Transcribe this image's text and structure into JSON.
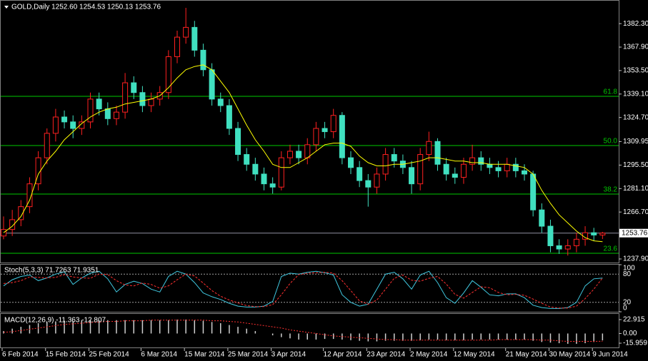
{
  "chart_data": {
    "type": "candlestick",
    "title": "GOLD,Daily  1252.60 1254.53 1250.13 1253.76",
    "categories": [
      "6 Feb 2014",
      null,
      null,
      null,
      null,
      "15 Feb 2014",
      null,
      null,
      null,
      null,
      "25 Feb 2014",
      null,
      null,
      null,
      null,
      null,
      "6 Mar 2014",
      null,
      null,
      null,
      null,
      "15 Mar 2014",
      null,
      null,
      null,
      null,
      "25 Mar 2014",
      null,
      null,
      null,
      null,
      "3 Apr 2014",
      null,
      null,
      null,
      null,
      null,
      "12 Apr 2014",
      null,
      null,
      null,
      null,
      "23 Apr 2014",
      null,
      null,
      null,
      null,
      "2 May 2014",
      null,
      null,
      null,
      null,
      "12 May 2014",
      null,
      null,
      null,
      null,
      null,
      "21 May 2014",
      null,
      null,
      null,
      null,
      "30 May 2014",
      null,
      null,
      null,
      null,
      "9 Jun 2014",
      null
    ],
    "candles": [
      [
        1252,
        1264,
        1250,
        1256
      ],
      [
        1256,
        1268,
        1252,
        1262
      ],
      [
        1262,
        1274,
        1258,
        1270
      ],
      [
        1270,
        1288,
        1266,
        1284
      ],
      [
        1284,
        1304,
        1280,
        1300
      ],
      [
        1300,
        1318,
        1296,
        1315
      ],
      [
        1315,
        1330,
        1310,
        1325
      ],
      [
        1325,
        1329,
        1318,
        1322
      ],
      [
        1322,
        1326,
        1312,
        1318
      ],
      [
        1318,
        1326,
        1314,
        1322
      ],
      [
        1322,
        1340,
        1318,
        1336
      ],
      [
        1336,
        1340,
        1326,
        1330
      ],
      [
        1330,
        1334,
        1320,
        1324
      ],
      [
        1324,
        1332,
        1320,
        1328
      ],
      [
        1328,
        1352,
        1324,
        1346
      ],
      [
        1346,
        1350,
        1336,
        1340
      ],
      [
        1340,
        1344,
        1328,
        1332
      ],
      [
        1332,
        1340,
        1328,
        1336
      ],
      [
        1336,
        1344,
        1332,
        1340
      ],
      [
        1340,
        1366,
        1336,
        1362
      ],
      [
        1362,
        1378,
        1358,
        1374
      ],
      [
        1374,
        1392,
        1370,
        1380
      ],
      [
        1380,
        1384,
        1362,
        1366
      ],
      [
        1366,
        1370,
        1350,
        1354
      ],
      [
        1354,
        1358,
        1332,
        1336
      ],
      [
        1336,
        1340,
        1328,
        1332
      ],
      [
        1332,
        1336,
        1314,
        1318
      ],
      [
        1318,
        1322,
        1298,
        1302
      ],
      [
        1302,
        1306,
        1292,
        1296
      ],
      [
        1296,
        1300,
        1286,
        1290
      ],
      [
        1290,
        1294,
        1280,
        1284
      ],
      [
        1284,
        1288,
        1278,
        1282
      ],
      [
        1282,
        1304,
        1280,
        1300
      ],
      [
        1300,
        1308,
        1296,
        1304
      ],
      [
        1304,
        1308,
        1296,
        1300
      ],
      [
        1300,
        1312,
        1296,
        1308
      ],
      [
        1308,
        1322,
        1304,
        1318
      ],
      [
        1318,
        1322,
        1312,
        1316
      ],
      [
        1316,
        1330,
        1312,
        1326
      ],
      [
        1326,
        1328,
        1296,
        1300
      ],
      [
        1300,
        1304,
        1290,
        1294
      ],
      [
        1294,
        1298,
        1282,
        1286
      ],
      [
        1286,
        1290,
        1270,
        1282
      ],
      [
        1282,
        1294,
        1278,
        1290
      ],
      [
        1290,
        1306,
        1286,
        1302
      ],
      [
        1302,
        1306,
        1294,
        1298
      ],
      [
        1298,
        1302,
        1290,
        1294
      ],
      [
        1294,
        1298,
        1278,
        1284
      ],
      [
        1284,
        1306,
        1280,
        1302
      ],
      [
        1302,
        1316,
        1298,
        1310
      ],
      [
        1310,
        1312,
        1292,
        1296
      ],
      [
        1296,
        1300,
        1286,
        1290
      ],
      [
        1290,
        1294,
        1284,
        1288
      ],
      [
        1288,
        1300,
        1284,
        1296
      ],
      [
        1296,
        1308,
        1292,
        1300
      ],
      [
        1300,
        1304,
        1292,
        1296
      ],
      [
        1296,
        1300,
        1290,
        1294
      ],
      [
        1294,
        1298,
        1288,
        1292
      ],
      [
        1292,
        1300,
        1288,
        1296
      ],
      [
        1296,
        1300,
        1288,
        1292
      ],
      [
        1292,
        1296,
        1286,
        1290
      ],
      [
        1290,
        1292,
        1264,
        1268
      ],
      [
        1268,
        1272,
        1254,
        1258
      ],
      [
        1258,
        1262,
        1242,
        1246
      ],
      [
        1246,
        1250,
        1241,
        1244
      ],
      [
        1244,
        1250,
        1240,
        1246
      ],
      [
        1246,
        1254,
        1242,
        1250
      ],
      [
        1250,
        1258,
        1246,
        1254
      ],
      [
        1254,
        1257,
        1249,
        1252.6
      ],
      [
        1252.6,
        1254.53,
        1250.13,
        1253.76
      ]
    ],
    "up_color": "#ff2020",
    "down_color": "#40e0c0",
    "ma": {
      "color": "#ffff00",
      "values": [
        1254,
        1258,
        1264,
        1274,
        1290,
        1298,
        1304,
        1311,
        1316,
        1321,
        1325,
        1328,
        1330,
        1331,
        1333,
        1334,
        1335,
        1336,
        1338,
        1343,
        1349,
        1354,
        1356,
        1357,
        1354,
        1347,
        1340,
        1330,
        1320,
        1311,
        1304,
        1296,
        1294,
        1294,
        1297,
        1300,
        1304,
        1308,
        1309,
        1309,
        1307,
        1301,
        1297,
        1295,
        1295,
        1296,
        1296,
        1297,
        1298,
        1300,
        1300,
        1299,
        1298,
        1298,
        1297,
        1297,
        1296,
        1296,
        1296,
        1295,
        1294,
        1290,
        1280,
        1272,
        1265,
        1260,
        1255,
        1251,
        1249,
        1248.5
      ]
    },
    "ylim": [
      1235.7,
      1396.8
    ],
    "yticks": [
      {
        "value": 1382.3,
        "label": "1382.30"
      },
      {
        "value": 1367.9,
        "label": "1367.90"
      },
      {
        "value": 1353.5,
        "label": "1353.50"
      },
      {
        "value": 1339.1,
        "label": "1339.10"
      },
      {
        "value": 1324.7,
        "label": "1324.70"
      },
      1309.95,
      {
        "value": 1295.5,
        "label": "1295.50"
      },
      {
        "value": 1281.1,
        "label": "1281.10"
      },
      {
        "value": 1266.7,
        "label": "1266.70"
      },
      {
        "value": 1237.9,
        "label": "1237.90"
      }
    ],
    "fib_color": "#00c800",
    "fib_levels": [
      {
        "label": "61.8",
        "value": 1337.7
      },
      {
        "label": "50.0",
        "value": 1307.5
      },
      {
        "label": "38.2",
        "value": 1277.7
      },
      {
        "label": "23.6",
        "value": 1241.4
      }
    ],
    "current_color": "#9090a0",
    "stoch": {
      "title": "Stoch(5,3,3) 71.7263 71.9351",
      "ylim": [
        0,
        100
      ],
      "yticks": [
        100,
        80,
        20,
        0
      ],
      "main": {
        "color": "#40c8e0",
        "values": [
          55,
          68,
          75,
          78,
          66,
          72,
          80,
          85,
          58,
          72,
          82,
          86,
          70,
          42,
          58,
          65,
          60,
          48,
          42,
          75,
          86,
          80,
          62,
          40,
          32,
          26,
          18,
          12,
          10,
          10,
          12,
          22,
          75,
          82,
          80,
          84,
          86,
          83,
          78,
          36,
          20,
          12,
          16,
          48,
          80,
          84,
          70,
          48,
          78,
          86,
          62,
          30,
          18,
          40,
          66,
          52,
          36,
          34,
          38,
          38,
          30,
          14,
          9,
          7,
          7,
          9,
          20,
          55,
          70,
          71.7263
        ]
      },
      "signal": {
        "color": "#ff3030",
        "values": [
          60,
          62,
          66,
          74,
          73,
          72,
          73,
          79,
          74,
          72,
          71,
          80,
          79,
          66,
          57,
          55,
          61,
          58,
          50,
          55,
          68,
          80,
          76,
          61,
          45,
          33,
          25,
          19,
          13,
          11,
          11,
          15,
          36,
          60,
          79,
          82,
          83,
          84,
          82,
          66,
          45,
          23,
          16,
          25,
          48,
          71,
          78,
          67,
          65,
          71,
          75,
          59,
          37,
          29,
          41,
          53,
          51,
          41,
          36,
          37,
          35,
          27,
          18,
          10,
          8,
          8,
          12,
          28,
          48,
          71.9351
        ]
      }
    },
    "macd": {
      "title": "MACD(12,26,9) -11.363 -12.807",
      "ylim": [
        -23,
        32.3
      ],
      "yticks": [
        22.915,
        {
          "value": 0,
          "label": "0.00"
        },
        -15.959
      ],
      "histogram": {
        "color": "#d0d0d0",
        "values": [
          4,
          8,
          11,
          14,
          17,
          19,
          20,
          21,
          21,
          22,
          22,
          22,
          22,
          22,
          22,
          22,
          22,
          22,
          22,
          22,
          23,
          23,
          22,
          21,
          19,
          17,
          14,
          11,
          8,
          4,
          0,
          -3,
          -6,
          -8,
          -10,
          -10,
          -10,
          -9,
          -9,
          -10,
          -11,
          -12,
          -13,
          -13,
          -12,
          -12,
          -12,
          -12,
          -11,
          -10,
          -10,
          -11,
          -11,
          -11,
          -10,
          -10,
          -10,
          -10,
          -10,
          -10,
          -10,
          -12,
          -14,
          -15,
          -16,
          -17,
          -17,
          -16,
          -14,
          -11.363
        ]
      },
      "signal": {
        "color": "#ff3030",
        "values": [
          2,
          3,
          5,
          7,
          9,
          11,
          13,
          15,
          16,
          17,
          18,
          19,
          20,
          20,
          21,
          21,
          21,
          22,
          22,
          22,
          22,
          22,
          22,
          22,
          21,
          21,
          20,
          19,
          17,
          15,
          13,
          11,
          9,
          6,
          4,
          2,
          0,
          -2,
          -4,
          -5,
          -6,
          -7,
          -8,
          -9,
          -10,
          -10,
          -11,
          -11,
          -11,
          -11,
          -11,
          -11,
          -11,
          -11,
          -11,
          -11,
          -11,
          -10,
          -10,
          -10,
          -10,
          -10,
          -11,
          -11,
          -12,
          -13,
          -13,
          -13,
          -13,
          -12.807
        ]
      }
    }
  }
}
